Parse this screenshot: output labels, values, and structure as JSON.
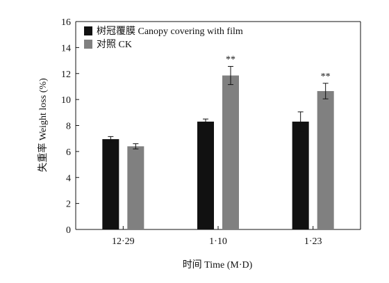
{
  "chart_data": {
    "type": "bar",
    "categories": [
      "12·29",
      "1·10",
      "1·23"
    ],
    "series": [
      {
        "name": "树冠覆膜 Canopy covering with film",
        "color": "#111111",
        "values": [
          6.95,
          8.3,
          8.3
        ],
        "errors": [
          0.2,
          0.2,
          0.75
        ],
        "annotations": [
          "",
          "",
          ""
        ]
      },
      {
        "name": "对照 CK",
        "color": "#808080",
        "values": [
          6.4,
          11.85,
          10.65
        ],
        "errors": [
          0.2,
          0.7,
          0.6
        ],
        "annotations": [
          "",
          "**",
          "**"
        ]
      }
    ],
    "xlabel": "时间 Time (M·D)",
    "ylabel": "失重率 Weight loss (%)",
    "ylim": [
      0,
      16
    ],
    "yticks": [
      0,
      2,
      4,
      6,
      8,
      10,
      12,
      14,
      16
    ],
    "grid": false,
    "legend_position": "top-left"
  }
}
